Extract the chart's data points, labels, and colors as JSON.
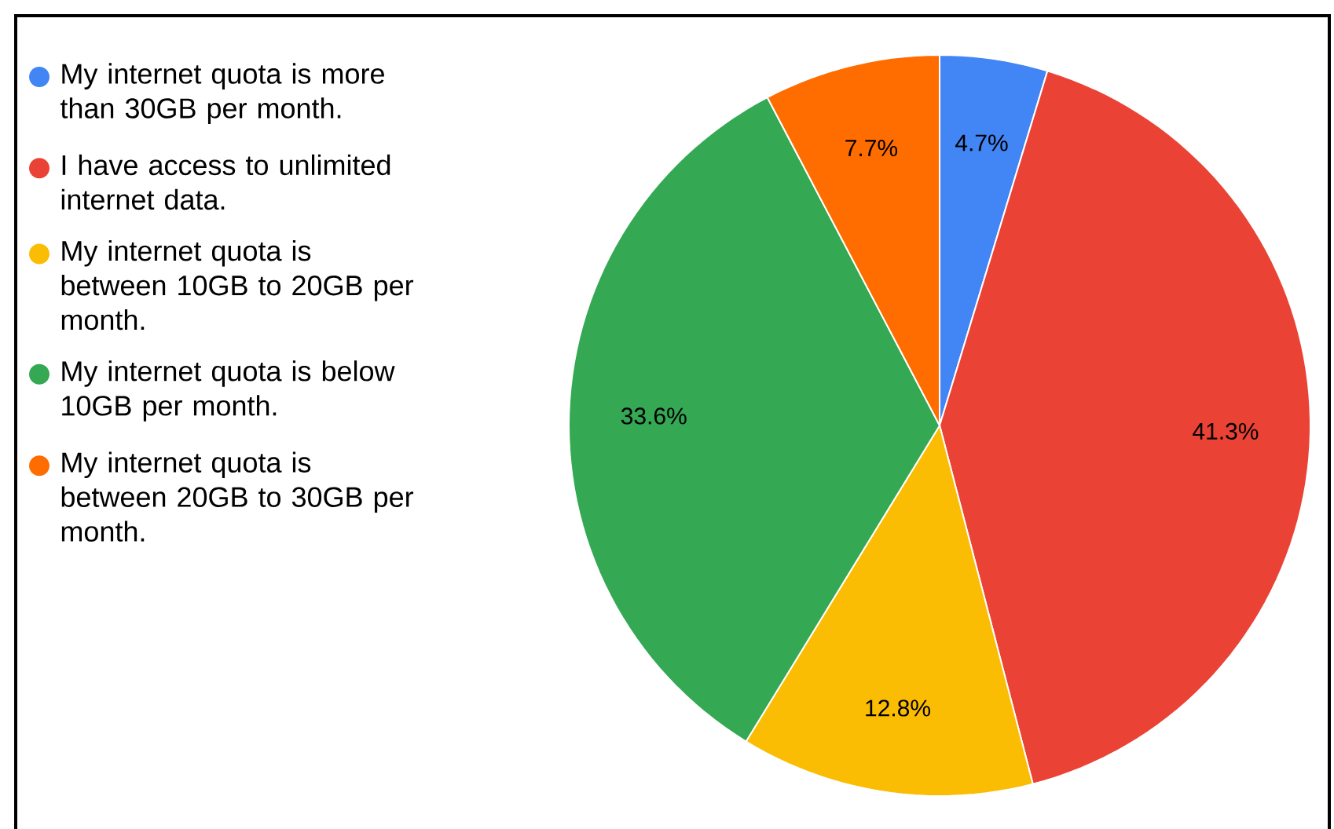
{
  "chart_data": {
    "type": "pie",
    "categories": [
      "My internet quota is more than 30GB per month.",
      "I have access to unlimited internet data.",
      "My internet quota is between 10GB to 20GB per month.",
      "My internet quota is below 10GB per month.",
      "My internet quota is between 20GB to 30GB per month."
    ],
    "values": [
      4.7,
      41.3,
      12.8,
      33.6,
      7.7
    ],
    "colors": [
      "#4285f4",
      "#ea4335",
      "#fbbc04",
      "#34a853",
      "#ff6d01"
    ],
    "value_labels": [
      "4.7%",
      "41.3%",
      "12.8%",
      "33.6%",
      "7.7%"
    ],
    "legend": "left"
  }
}
